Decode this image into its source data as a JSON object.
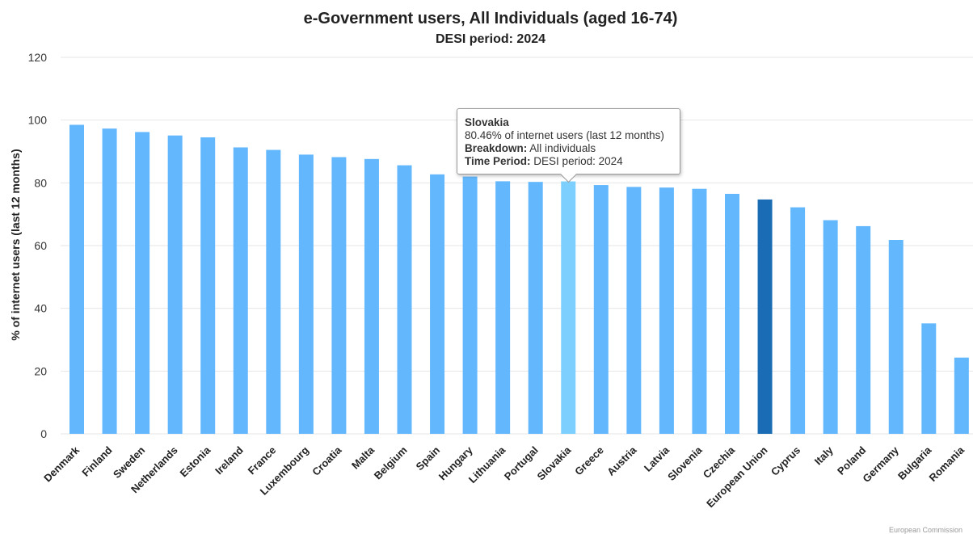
{
  "chart_data": {
    "type": "bar",
    "title": "e-Government users, All Individuals (aged 16-74)",
    "subtitle": "DESI period: 2024",
    "ylabel": "% of internet users (last 12 months)",
    "ylim": [
      0,
      120
    ],
    "yticks": [
      0,
      20,
      40,
      60,
      80,
      100,
      120
    ],
    "grid": true,
    "categories": [
      "Denmark",
      "Finland",
      "Sweden",
      "Netherlands",
      "Estonia",
      "Ireland",
      "France",
      "Luxembourg",
      "Croatia",
      "Malta",
      "Belgium",
      "Spain",
      "Hungary",
      "Lithuania",
      "Portugal",
      "Slovakia",
      "Greece",
      "Austria",
      "Latvia",
      "Slovenia",
      "Czechia",
      "European Union",
      "Cyprus",
      "Italy",
      "Poland",
      "Germany",
      "Bulgaria",
      "Romania"
    ],
    "values": [
      98.5,
      97.3,
      96.2,
      95.1,
      94.5,
      91.3,
      90.5,
      89.0,
      88.2,
      87.6,
      85.6,
      82.7,
      82.0,
      80.5,
      80.3,
      80.46,
      79.3,
      78.7,
      78.5,
      78.1,
      76.5,
      74.7,
      72.2,
      68.1,
      66.2,
      61.8,
      35.2,
      24.3
    ],
    "colors": {
      "bar": "#63b8fd",
      "highlight": "#7dd0fe",
      "eu": "#1a6db5"
    },
    "highlight_category": "Slovakia",
    "eu_category": "European Union"
  },
  "tooltip": {
    "title": "Slovakia",
    "value_line": "80.46% of internet users (last 12 months)",
    "breakdown_label": "Breakdown:",
    "breakdown_value": "All individuals",
    "period_label": "Time Period:",
    "period_value": "DESI period: 2024"
  },
  "credit": "European Commission"
}
